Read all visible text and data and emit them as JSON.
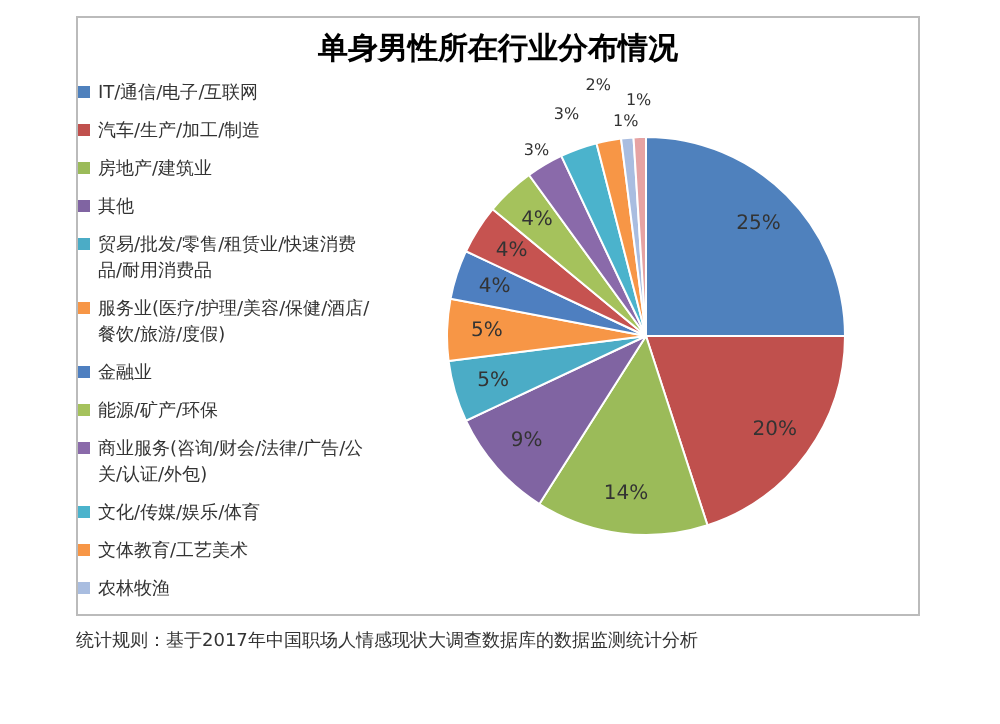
{
  "chart_data": {
    "type": "pie",
    "title": "单身男性所在行业分布情况",
    "categories": [
      "IT/通信/电子/互联网",
      "汽车/生产/加工/制造",
      "房地产/建筑业",
      "其他",
      "贸易/批发/零售/租赁业/快速消费品/耐用消费品",
      "服务业(医疗/护理/美容/保健/酒店/餐饮/旅游/度假)",
      "金融业",
      null,
      "能源/矿产/环保",
      "商业服务(咨询/财会/法律/广告/公关/认证/外包)",
      "文化/传媒/娱乐/体育",
      "文体教育/工艺美术",
      "农林牧渔",
      null
    ],
    "values": [
      25,
      20,
      14,
      9,
      5,
      5,
      4,
      4,
      4,
      3,
      3,
      2,
      1,
      1
    ],
    "value_labels": [
      "25%",
      "20%",
      "14%",
      "9%",
      "5%",
      "5%",
      "4%",
      "4%",
      "4%",
      "3%",
      "3%",
      "2%",
      "1%",
      "1%"
    ],
    "colors": [
      "#4f81bd",
      "#c0504d",
      "#9bbb59",
      "#8064a2",
      "#4bacc6",
      "#f79646",
      "#4e7fc0",
      "#c65350",
      "#a5c25c",
      "#8a6aaa",
      "#4bb3cc",
      "#f79646",
      "#a9bde0",
      "#e6a3a3"
    ],
    "legend": "left",
    "annotations": [
      "统计规则：基于2017年中国职场人情感现状大调查数据库的数据监测统计分析"
    ]
  }
}
